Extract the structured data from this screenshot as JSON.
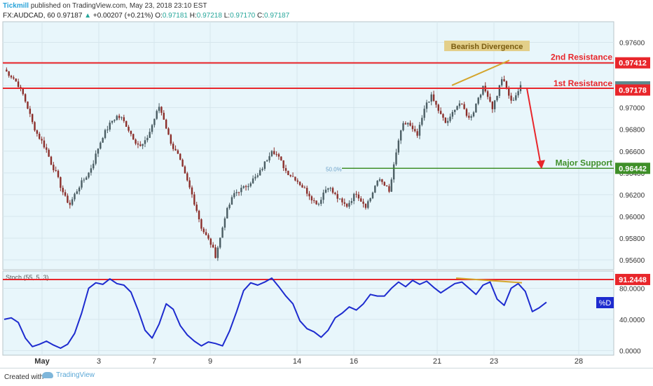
{
  "header": {
    "brand": "Tickmill",
    "published": "published on TradingView.com, May 23, 2018 23:10 EST",
    "symbol": "FX:AUDCAD, 60",
    "last": "0.97187",
    "change_arrow": "▲",
    "change": "+0.00207 (+0.21%)",
    "open_label": "O:",
    "open": "0.97181",
    "high_label": "H:",
    "high": "0.97218",
    "low_label": "L:",
    "low": "0.97170",
    "close_label": "C:",
    "close": "0.97187"
  },
  "footer": {
    "created_with": "Created with",
    "tradingview": "TradingView"
  },
  "colors": {
    "background": "#e8f6fb",
    "resistance": "#e8262b",
    "support": "#3f8f29",
    "divergence": "#d4a52c",
    "candle_up": "#4a5d63",
    "candle_down": "#8b2e2a",
    "stoch_line": "#1d2bcf"
  },
  "annotations": {
    "bearish_divergence": "Bearish Divergence",
    "second_resistance": "2nd Resistance",
    "first_resistance": "1st Resistance",
    "major_support": "Major Support",
    "fib_label": "50.0%",
    "stoch_title": "Stoch (55, 5, 3)",
    "stoch_series": "%D"
  },
  "chart_data": [
    {
      "type": "candlestick",
      "symbol": "FX:AUDCAD",
      "timeframe": "60",
      "x_ticks": [
        "May",
        "3",
        "7",
        "9",
        "14",
        "16",
        "21",
        "23",
        "28"
      ],
      "y_ticks": [
        "0.97600",
        "0.97400",
        "0.97200",
        "0.97000",
        "0.96800",
        "0.96600",
        "0.96400",
        "0.96200",
        "0.96000",
        "0.95800",
        "0.95600"
      ],
      "ylim": [
        0.9551,
        0.9779
      ],
      "levels": [
        {
          "name": "2nd Resistance",
          "value": 0.97412,
          "label": "0.97412"
        },
        {
          "name": "1st Resistance",
          "value": 0.97178,
          "label": "0.97178"
        },
        {
          "name": "Major Support",
          "value": 0.96442,
          "label": "0.96442"
        }
      ],
      "last_price": {
        "value": 0.97187,
        "label": "0.97187"
      },
      "close_path": [
        [
          0,
          0.9735
        ],
        [
          2,
          0.9731
        ],
        [
          4,
          0.9727
        ],
        [
          6,
          0.9721
        ],
        [
          8,
          0.9712
        ],
        [
          10,
          0.97
        ],
        [
          12,
          0.9686
        ],
        [
          14,
          0.9676
        ],
        [
          16,
          0.9669
        ],
        [
          18,
          0.9661
        ],
        [
          20,
          0.9649
        ],
        [
          22,
          0.964
        ],
        [
          24,
          0.9628
        ],
        [
          26,
          0.9617
        ],
        [
          28,
          0.9611
        ],
        [
          30,
          0.962
        ],
        [
          32,
          0.9628
        ],
        [
          34,
          0.9634
        ],
        [
          36,
          0.964
        ],
        [
          38,
          0.965
        ],
        [
          40,
          0.9663
        ],
        [
          42,
          0.9674
        ],
        [
          44,
          0.9681
        ],
        [
          46,
          0.9688
        ],
        [
          48,
          0.9692
        ],
        [
          50,
          0.969
        ],
        [
          52,
          0.9684
        ],
        [
          54,
          0.9676
        ],
        [
          56,
          0.9669
        ],
        [
          58,
          0.9664
        ],
        [
          60,
          0.9668
        ],
        [
          62,
          0.9678
        ],
        [
          64,
          0.969
        ],
        [
          66,
          0.9701
        ],
        [
          68,
          0.969
        ],
        [
          70,
          0.9674
        ],
        [
          72,
          0.9663
        ],
        [
          74,
          0.9656
        ],
        [
          76,
          0.9644
        ],
        [
          78,
          0.9632
        ],
        [
          80,
          0.962
        ],
        [
          82,
          0.9606
        ],
        [
          84,
          0.959
        ],
        [
          86,
          0.9582
        ],
        [
          88,
          0.9575
        ],
        [
          90,
          0.9564
        ],
        [
          92,
          0.958
        ],
        [
          94,
          0.96
        ],
        [
          96,
          0.9611
        ],
        [
          98,
          0.9621
        ],
        [
          100,
          0.9624
        ],
        [
          102,
          0.9626
        ],
        [
          104,
          0.963
        ],
        [
          106,
          0.9634
        ],
        [
          108,
          0.9637
        ],
        [
          110,
          0.9645
        ],
        [
          112,
          0.9653
        ],
        [
          114,
          0.9662
        ],
        [
          116,
          0.9657
        ],
        [
          118,
          0.965
        ],
        [
          120,
          0.9642
        ],
        [
          122,
          0.9638
        ],
        [
          124,
          0.9635
        ],
        [
          126,
          0.963
        ],
        [
          128,
          0.9625
        ],
        [
          130,
          0.962
        ],
        [
          132,
          0.9614
        ],
        [
          134,
          0.9612
        ],
        [
          136,
          0.9622
        ],
        [
          138,
          0.9628
        ],
        [
          140,
          0.9622
        ],
        [
          142,
          0.9617
        ],
        [
          144,
          0.9612
        ],
        [
          146,
          0.961
        ],
        [
          148,
          0.9616
        ],
        [
          150,
          0.9622
        ],
        [
          152,
          0.9615
        ],
        [
          154,
          0.961
        ],
        [
          156,
          0.9617
        ],
        [
          158,
          0.9628
        ],
        [
          160,
          0.9634
        ],
        [
          162,
          0.963
        ],
        [
          164,
          0.9622
        ],
        [
          166,
          0.9646
        ],
        [
          168,
          0.967
        ],
        [
          170,
          0.9684
        ],
        [
          172,
          0.9686
        ],
        [
          174,
          0.9679
        ],
        [
          176,
          0.9674
        ],
        [
          178,
          0.969
        ],
        [
          180,
          0.9705
        ],
        [
          182,
          0.971
        ],
        [
          184,
          0.9702
        ],
        [
          186,
          0.9693
        ],
        [
          188,
          0.9686
        ],
        [
          190,
          0.969
        ],
        [
          192,
          0.97
        ],
        [
          194,
          0.9704
        ],
        [
          196,
          0.9698
        ],
        [
          198,
          0.969
        ],
        [
          200,
          0.9697
        ],
        [
          202,
          0.971
        ],
        [
          204,
          0.9718
        ],
        [
          206,
          0.9712
        ],
        [
          208,
          0.97
        ],
        [
          210,
          0.9712
        ],
        [
          212,
          0.9727
        ],
        [
          214,
          0.9718
        ],
        [
          216,
          0.9705
        ],
        [
          218,
          0.9712
        ],
        [
          220,
          0.9719
        ]
      ],
      "trade_projection": {
        "from": 0.97178,
        "to": 0.96442
      },
      "divergence_line": "rising highs",
      "fib_level": {
        "label": "50.0%",
        "value": 0.96442
      }
    },
    {
      "type": "line",
      "title": "Stoch (55, 5, 3)",
      "series_name": "%D",
      "y_ticks": [
        "80.0000",
        "40.0000",
        "0.0000"
      ],
      "ylim": [
        -6,
        102
      ],
      "overbought_level": {
        "value": 91.2448,
        "label": "91.2448"
      },
      "values": [
        [
          0,
          40
        ],
        [
          3,
          42
        ],
        [
          6,
          36
        ],
        [
          9,
          16
        ],
        [
          12,
          5
        ],
        [
          15,
          8
        ],
        [
          18,
          12
        ],
        [
          21,
          7
        ],
        [
          24,
          3
        ],
        [
          27,
          8
        ],
        [
          30,
          22
        ],
        [
          33,
          48
        ],
        [
          36,
          80
        ],
        [
          39,
          87
        ],
        [
          42,
          85
        ],
        [
          45,
          92
        ],
        [
          48,
          86
        ],
        [
          51,
          84
        ],
        [
          54,
          75
        ],
        [
          57,
          52
        ],
        [
          60,
          26
        ],
        [
          63,
          16
        ],
        [
          66,
          34
        ],
        [
          69,
          60
        ],
        [
          72,
          53
        ],
        [
          75,
          32
        ],
        [
          78,
          20
        ],
        [
          81,
          12
        ],
        [
          84,
          6
        ],
        [
          87,
          11
        ],
        [
          90,
          9
        ],
        [
          93,
          6
        ],
        [
          96,
          25
        ],
        [
          99,
          50
        ],
        [
          102,
          77
        ],
        [
          105,
          87
        ],
        [
          108,
          84
        ],
        [
          111,
          88
        ],
        [
          114,
          93
        ],
        [
          117,
          82
        ],
        [
          120,
          70
        ],
        [
          123,
          60
        ],
        [
          126,
          38
        ],
        [
          129,
          28
        ],
        [
          132,
          24
        ],
        [
          135,
          17
        ],
        [
          138,
          26
        ],
        [
          141,
          42
        ],
        [
          144,
          48
        ],
        [
          147,
          56
        ],
        [
          150,
          52
        ],
        [
          153,
          60
        ],
        [
          156,
          72
        ],
        [
          159,
          70
        ],
        [
          162,
          70
        ],
        [
          165,
          80
        ],
        [
          168,
          88
        ],
        [
          171,
          82
        ],
        [
          174,
          90
        ],
        [
          177,
          85
        ],
        [
          180,
          89
        ],
        [
          183,
          81
        ],
        [
          186,
          74
        ],
        [
          189,
          80
        ],
        [
          192,
          86
        ],
        [
          195,
          88
        ],
        [
          198,
          80
        ],
        [
          201,
          72
        ],
        [
          204,
          84
        ],
        [
          207,
          88
        ],
        [
          210,
          66
        ],
        [
          213,
          58
        ],
        [
          216,
          80
        ],
        [
          219,
          86
        ],
        [
          222,
          76
        ],
        [
          225,
          50
        ],
        [
          228,
          55
        ],
        [
          231,
          62
        ]
      ]
    }
  ]
}
